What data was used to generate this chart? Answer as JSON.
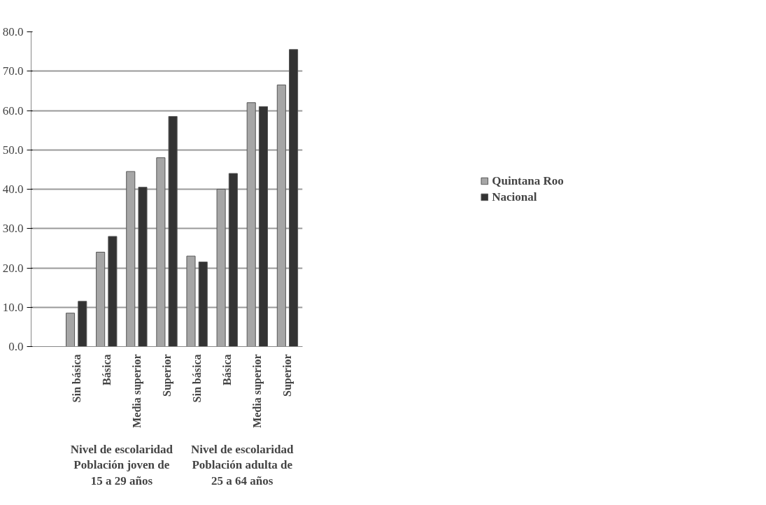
{
  "chart_data": {
    "type": "bar",
    "categories": [
      null,
      "Sin básica",
      "Básica",
      "Media superior",
      "Superior",
      "Sin básica",
      "Básica",
      "Media superior",
      "Superior"
    ],
    "annotations": [
      "Nivel de escolaridad\nPoblación joven de 15 a 29 años",
      "Nivel de escolaridad\nPoblación adulta de 25 a 64 años"
    ],
    "series": [
      {
        "name": "Quintana Roo",
        "color": "#a6a6a6",
        "values": [
          null,
          8.5,
          24,
          44.5,
          48,
          23,
          40,
          62,
          66.5
        ]
      },
      {
        "name": "Nacional",
        "color": "#333333",
        "values": [
          null,
          11.5,
          28,
          40.5,
          58.5,
          21.5,
          44,
          61,
          75.5
        ]
      }
    ],
    "ylim": [
      0,
      80
    ],
    "yticks": [
      {
        "value": 0,
        "label": "0.0"
      },
      {
        "value": 10,
        "label": "10.0"
      },
      {
        "value": 20,
        "label": "20.0"
      },
      {
        "value": 30,
        "label": "30.0"
      },
      {
        "value": 40,
        "label": "40.0"
      },
      {
        "value": 50,
        "label": "50.0"
      },
      {
        "value": 60,
        "label": "60.0"
      },
      {
        "value": 70,
        "label": "70.0"
      },
      {
        "value": 80,
        "label": "80.0"
      }
    ],
    "grid": "y",
    "legend": "right"
  }
}
